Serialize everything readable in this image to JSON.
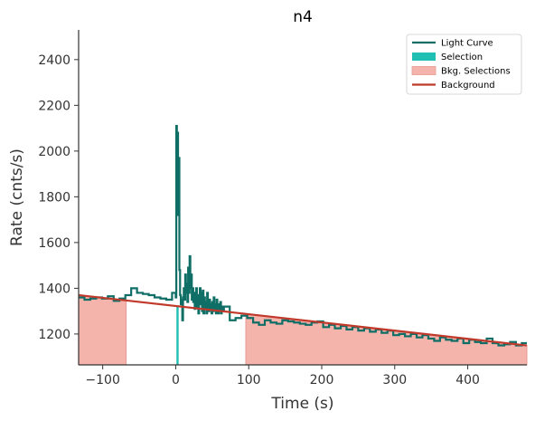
{
  "chart_data": {
    "type": "line",
    "title": "n4",
    "xlabel": "Time (s)",
    "ylabel": "Rate (cnts/s)",
    "xlim": [
      -133,
      481
    ],
    "ylim": [
      1065,
      2530
    ],
    "x_ticks": [
      -100,
      0,
      100,
      200,
      300,
      400
    ],
    "x_tick_labels": [
      "−100",
      "0",
      "100",
      "200",
      "300",
      "400"
    ],
    "y_ticks": [
      1200,
      1400,
      1600,
      1800,
      2000,
      2200,
      2400
    ],
    "y_tick_labels": [
      "1200",
      "1400",
      "1600",
      "1800",
      "2000",
      "2200",
      "2400"
    ],
    "legend_position": "top-right",
    "colors": {
      "light_curve": "#0f6e66",
      "selection": "#1fbfb4",
      "bkg_fill": "#f4b4ac",
      "bkg_edge": "#e89a92",
      "background": "#c0392b",
      "axis": "#333333"
    },
    "legend": [
      {
        "label": "Light Curve",
        "kind": "line",
        "color": "#0f6e66"
      },
      {
        "label": "Selection",
        "kind": "patch",
        "color": "#1fbfb4"
      },
      {
        "label": "Bkg. Selections",
        "kind": "patch",
        "color": "#f4b4ac"
      },
      {
        "label": "Background",
        "kind": "line",
        "color": "#c0392b"
      }
    ],
    "background_fit": {
      "x": [
        -133,
        481
      ],
      "y": [
        1370,
        1150
      ]
    },
    "bkg_selections": [
      [
        -133,
        -68
      ],
      [
        96,
        481
      ]
    ],
    "source_selection": [
      1,
      4
    ],
    "series": [
      {
        "name": "Light Curve",
        "x": [
          -133,
          -125,
          -117,
          -109,
          -101,
          -93,
          -85,
          -77,
          -69,
          -61,
          -53,
          -45,
          -37,
          -29,
          -21,
          -13,
          -5,
          0,
          0.8,
          1.6,
          2.4,
          3.2,
          4,
          5,
          6,
          7,
          8,
          9,
          10,
          11,
          12,
          13,
          14,
          15,
          16,
          17,
          18,
          19,
          20,
          21,
          22,
          23,
          24,
          25,
          26,
          27,
          28,
          29,
          30,
          31,
          32,
          33,
          34,
          35,
          36,
          37,
          38,
          39,
          40,
          41,
          42,
          43,
          44,
          45,
          46,
          47,
          48,
          49,
          50,
          51,
          52,
          53,
          54,
          55,
          56,
          57,
          58,
          59,
          60,
          61,
          62,
          63,
          64,
          66,
          74,
          82,
          90,
          98,
          106,
          114,
          122,
          130,
          138,
          146,
          154,
          162,
          170,
          178,
          186,
          194,
          202,
          210,
          218,
          226,
          234,
          242,
          250,
          258,
          266,
          274,
          282,
          290,
          298,
          306,
          314,
          322,
          330,
          338,
          346,
          354,
          362,
          370,
          378,
          386,
          394,
          402,
          410,
          418,
          426,
          434,
          442,
          450,
          458,
          466,
          474
        ],
        "y": [
          1360,
          1350,
          1355,
          1360,
          1355,
          1365,
          1345,
          1355,
          1370,
          1400,
          1380,
          1375,
          1370,
          1360,
          1355,
          1350,
          1380,
          1360,
          2110,
          1900,
          2080,
          1720,
          1970,
          1480,
          1370,
          1330,
          1350,
          1260,
          1360,
          1400,
          1350,
          1460,
          1380,
          1420,
          1340,
          1490,
          1380,
          1540,
          1400,
          1460,
          1350,
          1400,
          1340,
          1380,
          1310,
          1360,
          1400,
          1320,
          1370,
          1290,
          1340,
          1400,
          1330,
          1380,
          1300,
          1390,
          1290,
          1360,
          1340,
          1310,
          1290,
          1380,
          1320,
          1300,
          1350,
          1330,
          1310,
          1290,
          1340,
          1300,
          1360,
          1310,
          1330,
          1290,
          1350,
          1310,
          1290,
          1330,
          1300,
          1340,
          1290,
          1320,
          1300,
          1320,
          1260,
          1270,
          1280,
          1270,
          1250,
          1240,
          1260,
          1250,
          1245,
          1260,
          1255,
          1250,
          1245,
          1240,
          1250,
          1255,
          1230,
          1240,
          1225,
          1235,
          1220,
          1230,
          1215,
          1225,
          1210,
          1220,
          1205,
          1215,
          1195,
          1200,
          1190,
          1200,
          1185,
          1195,
          1180,
          1170,
          1185,
          1175,
          1170,
          1180,
          1160,
          1175,
          1165,
          1160,
          1180,
          1160,
          1150,
          1155,
          1165,
          1150,
          1160
        ]
      }
    ]
  }
}
